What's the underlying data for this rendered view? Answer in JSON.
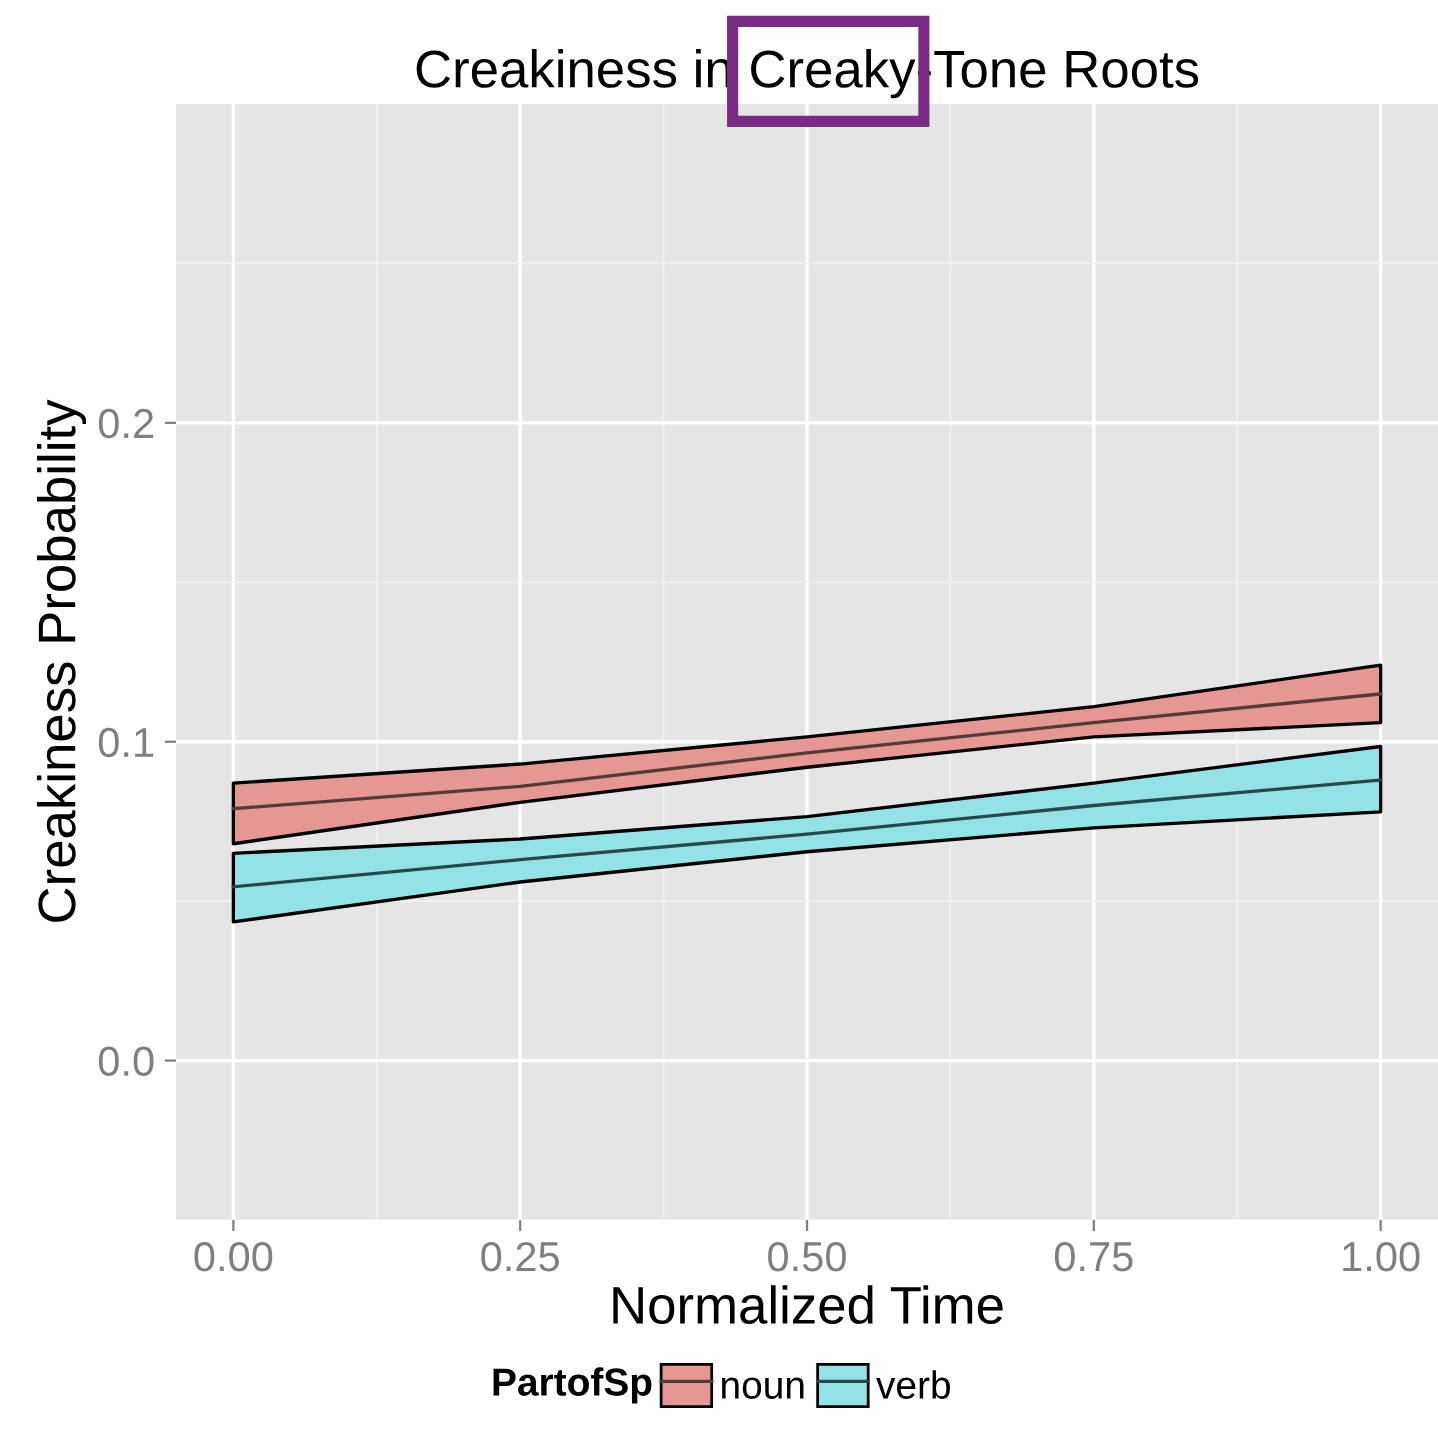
{
  "chart_data": {
    "type": "line",
    "title": "Creakiness in Creaky-Tone Roots",
    "xlabel": "Normalized Time",
    "ylabel": "Creakiness Probability",
    "legend_title": "PartofSp",
    "legend": "bottom",
    "grid": true,
    "xlim": [
      -0.05,
      1.05
    ],
    "ylim": [
      -0.05,
      0.3
    ],
    "xticks": [
      {
        "value": 0,
        "label": "0.00"
      },
      {
        "value": 0.25,
        "label": "0.25"
      },
      {
        "value": 0.5,
        "label": "0.50"
      },
      {
        "value": 0.75,
        "label": "0.75"
      },
      {
        "value": 1,
        "label": "1.00"
      }
    ],
    "yticks": [
      {
        "value": 0,
        "label": "0.0"
      },
      {
        "value": 0.1,
        "label": "0.1"
      },
      {
        "value": 0.2,
        "label": "0.2"
      }
    ],
    "x": [
      0,
      0.25,
      0.5,
      0.75,
      1
    ],
    "series": [
      {
        "name": "noun",
        "color": "#533b3a",
        "values": [
          0.079,
          0.086,
          0.0965,
          0.106,
          0.115
        ],
        "lower": [
          0.068,
          0.081,
          0.092,
          0.1015,
          0.106
        ],
        "upper": [
          0.087,
          0.093,
          0.1015,
          0.111,
          0.124
        ]
      },
      {
        "name": "verb",
        "color": "#27494a",
        "values": [
          0.0545,
          0.063,
          0.071,
          0.08,
          0.088
        ],
        "lower": [
          0.0435,
          0.056,
          0.0655,
          0.073,
          0.078
        ],
        "upper": [
          0.065,
          0.0695,
          0.0765,
          0.087,
          0.0985
        ]
      }
    ]
  }
}
